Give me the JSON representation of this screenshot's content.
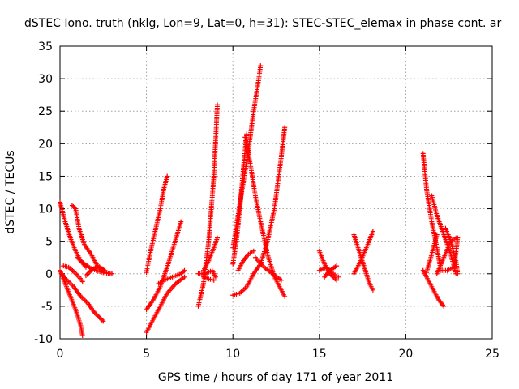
{
  "chart_data": {
    "type": "scatter",
    "title": "dSTEC Iono. truth (nklg, Lon=9, Lat=0, h=31): STEC-STEC_elemax in phase cont. ar",
    "xlabel": "GPS time / hours of day 171 of year 2011",
    "ylabel": "dSTEC  / TECUs",
    "xlim": [
      0,
      25
    ],
    "ylim": [
      -10,
      35
    ],
    "xticks": [
      0,
      5,
      10,
      15,
      20,
      25
    ],
    "yticks": [
      -10,
      -5,
      0,
      5,
      10,
      15,
      20,
      25,
      30,
      35
    ],
    "grid": true,
    "legend": "none",
    "marker": "plus",
    "color": "#ff0000",
    "series": [
      {
        "x": [
          0.0,
          0.3,
          0.6,
          0.9,
          1.2,
          1.5
        ],
        "y": [
          11,
          8,
          5.5,
          3.5,
          2,
          1
        ]
      },
      {
        "x": [
          0.7,
          0.9,
          1.1,
          1.4,
          1.8,
          2.2,
          2.6,
          3.0
        ],
        "y": [
          10.5,
          10,
          7,
          4.5,
          3,
          1,
          0.2,
          0
        ]
      },
      {
        "x": [
          0.0,
          0.3,
          0.6,
          0.9,
          1.2,
          1.3
        ],
        "y": [
          0.5,
          -1.5,
          -3.5,
          -5.5,
          -8,
          -9.5
        ]
      },
      {
        "x": [
          0.1,
          0.4,
          0.8,
          1.2,
          1.6,
          2.0,
          2.5
        ],
        "y": [
          0,
          -1,
          -2,
          -3.5,
          -4.5,
          -6,
          -7.3
        ]
      },
      {
        "x": [
          0.2,
          0.5,
          0.8,
          1.1,
          1.3
        ],
        "y": [
          1.2,
          1,
          0.3,
          -0.5,
          -1.2
        ]
      },
      {
        "x": [
          1.0,
          1.4,
          1.8,
          2.2,
          2.6,
          3.0
        ],
        "y": [
          2.5,
          1.5,
          0.8,
          0.4,
          0.1,
          0
        ]
      },
      {
        "x": [
          1.5,
          1.8,
          2.2,
          2.6
        ],
        "y": [
          -0.3,
          0.5,
          1.2,
          0.5
        ]
      },
      {
        "x": [
          5.0,
          5.2,
          5.5,
          5.8,
          6.0,
          6.2
        ],
        "y": [
          0.2,
          3,
          6.5,
          10,
          13,
          15
        ]
      },
      {
        "x": [
          5.0,
          5.4,
          5.8,
          6.2,
          6.6,
          7.0
        ],
        "y": [
          -5.5,
          -4,
          -2,
          1,
          4.5,
          8
        ]
      },
      {
        "x": [
          5.0,
          5.4,
          5.8,
          6.2,
          6.7,
          7.2
        ],
        "y": [
          -9,
          -7,
          -5,
          -3,
          -1.5,
          -0.5
        ]
      },
      {
        "x": [
          5.7,
          6.0,
          6.5,
          7.0,
          7.2
        ],
        "y": [
          -1.5,
          -1,
          -0.5,
          0,
          0.5
        ]
      },
      {
        "x": [
          8.0,
          8.3,
          8.6,
          8.9,
          9.1
        ],
        "y": [
          -5,
          -1.5,
          5,
          15,
          26
        ]
      },
      {
        "x": [
          8.0,
          8.4,
          8.8,
          9.0
        ],
        "y": [
          0,
          0,
          0.5,
          -0.5
        ]
      },
      {
        "x": [
          8.3,
          8.6,
          8.9,
          9.1
        ],
        "y": [
          0.5,
          2,
          4,
          5.5
        ]
      },
      {
        "x": [
          8.3,
          8.6,
          8.9
        ],
        "y": [
          -0.5,
          -0.8,
          -1
        ]
      },
      {
        "x": [
          10.0,
          10.2,
          10.4,
          10.6,
          10.8
        ],
        "y": [
          1.5,
          5,
          10,
          16,
          21.5
        ]
      },
      {
        "x": [
          10.0,
          10.3,
          10.6,
          10.9,
          11.2,
          11.5,
          11.6
        ],
        "y": [
          4,
          9,
          14,
          19,
          25,
          30,
          32
        ]
      },
      {
        "x": [
          10.0,
          10.4,
          10.8,
          11.2,
          11.6,
          12.0,
          12.4,
          12.8,
          13.0
        ],
        "y": [
          -3.3,
          -3,
          -2,
          0,
          1.5,
          5,
          10,
          18,
          22.5
        ]
      },
      {
        "x": [
          10.7,
          11.0,
          11.3,
          11.6,
          12.0,
          12.4,
          12.8,
          13.0
        ],
        "y": [
          21,
          17,
          12,
          8,
          3,
          -0.5,
          -2.5,
          -3.5
        ]
      },
      {
        "x": [
          10.3,
          10.6,
          10.9,
          11.2
        ],
        "y": [
          0.5,
          2,
          3,
          3.5
        ]
      },
      {
        "x": [
          11.3,
          11.8,
          12.3,
          12.8
        ],
        "y": [
          2.5,
          1,
          0,
          -1
        ]
      },
      {
        "x": [
          15.0,
          15.3,
          15.6,
          16.0
        ],
        "y": [
          3.5,
          1.5,
          0,
          -1
        ]
      },
      {
        "x": [
          15.0,
          15.4,
          15.8,
          16.1
        ],
        "y": [
          0.5,
          1,
          0,
          -0.5
        ]
      },
      {
        "x": [
          15.3,
          15.6,
          16.0
        ],
        "y": [
          -0.5,
          0.5,
          1.2
        ]
      },
      {
        "x": [
          17.0,
          17.3,
          17.6,
          17.9,
          18.1
        ],
        "y": [
          6,
          3.5,
          1,
          -1.5,
          -2.5
        ]
      },
      {
        "x": [
          17.0,
          17.4,
          17.8,
          18.1
        ],
        "y": [
          0,
          2,
          4.5,
          6.5
        ]
      },
      {
        "x": [
          21.0,
          21.2,
          21.5,
          21.8,
          22.0
        ],
        "y": [
          18.5,
          13,
          8,
          4,
          1
        ]
      },
      {
        "x": [
          21.0,
          21.3,
          21.6,
          21.9,
          22.2
        ],
        "y": [
          0.5,
          -1,
          -2.5,
          -4,
          -5
        ]
      },
      {
        "x": [
          21.2,
          21.5,
          21.8
        ],
        "y": [
          0.2,
          3,
          6
        ]
      },
      {
        "x": [
          21.5,
          21.8,
          22.2,
          22.6,
          22.9
        ],
        "y": [
          12,
          9,
          6,
          3,
          0
        ]
      },
      {
        "x": [
          21.8,
          22.2,
          22.6,
          22.9
        ],
        "y": [
          0,
          2.5,
          5,
          5.5
        ]
      },
      {
        "x": [
          22.0,
          22.4,
          22.8,
          23.0
        ],
        "y": [
          0.5,
          0.5,
          1,
          5.5
        ]
      },
      {
        "x": [
          22.3,
          22.6,
          22.9,
          23.0
        ],
        "y": [
          7,
          5,
          2,
          0
        ]
      }
    ]
  }
}
